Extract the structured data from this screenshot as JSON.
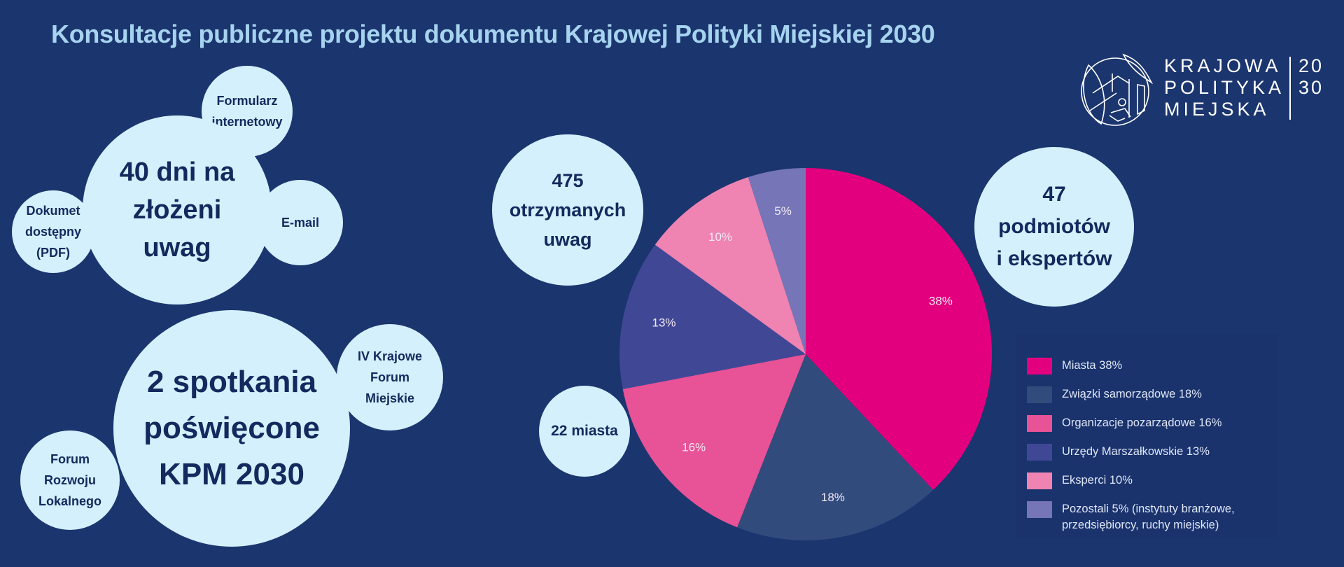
{
  "title": "Konsultacje publiczne projektu dokumentu Krajowej Polityki Miejskiej 2030",
  "logo": {
    "line1": "KRAJOWA",
    "line2": "POLITYKA",
    "line3": "MIEJSKA",
    "year1": "20",
    "year2": "30"
  },
  "bubbles": {
    "days": [
      "40 dni na",
      "złożeni",
      "uwag"
    ],
    "form": [
      "Formularz",
      "internetowy"
    ],
    "pdf": [
      "Dokumet",
      "dostępny",
      "(PDF)"
    ],
    "email": [
      "E-mail"
    ],
    "meetings": [
      "2 spotkania",
      "poświęcone",
      "KPM 2030"
    ],
    "forum_iv": [
      "IV Krajowe",
      "Forum",
      "Miejskie"
    ],
    "forum_rl": [
      "Forum",
      "Rozwoju",
      "Lokalnego"
    ],
    "comments": [
      "475",
      "otrzymanych",
      "uwag"
    ],
    "cities": [
      "22 miasta"
    ],
    "entities": [
      "47",
      "podmiotów",
      "i ekspertów"
    ]
  },
  "chart_data": {
    "type": "pie",
    "start": "top",
    "direction": "clockwise",
    "legend_position": "right",
    "slices": [
      {
        "label": "Miasta 38%",
        "value": 38,
        "data_label": "38%",
        "color": "#e3007e"
      },
      {
        "label": "Związki samorządowe 18%",
        "value": 18,
        "data_label": "18%",
        "color": "#314b7d"
      },
      {
        "label": "Organizacje pozarządowe 16%",
        "value": 16,
        "data_label": "16%",
        "color": "#e85296"
      },
      {
        "label": "Urzędy Marszałkowskie 13%",
        "value": 13,
        "data_label": "13%",
        "color": "#404896"
      },
      {
        "label": "Eksperci 10%",
        "value": 10,
        "data_label": "10%",
        "color": "#ef83b2"
      },
      {
        "label": "Pozostali 5% (instytuty branżowe, przedsiębiorcy, ruchy miejskie)",
        "value": 5,
        "data_label": "5%",
        "color": "#7575b8"
      }
    ]
  }
}
